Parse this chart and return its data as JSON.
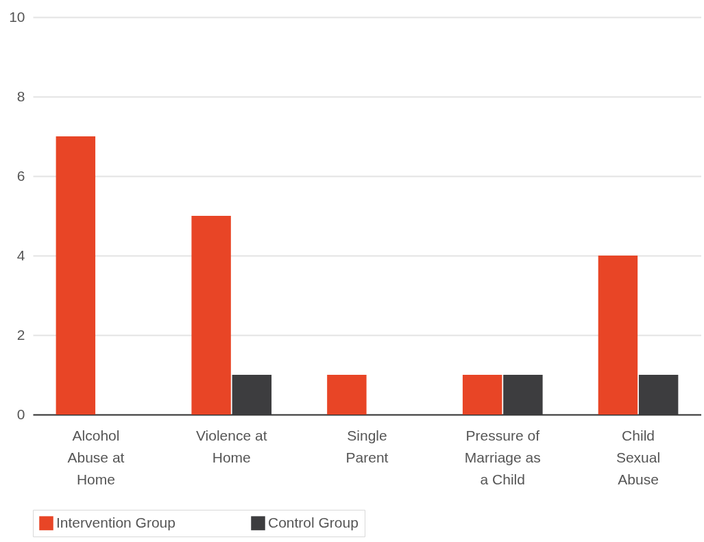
{
  "chart_data": {
    "type": "bar",
    "categories": [
      "Alcohol Abuse at Home",
      "Violence at Home",
      "Single Parent",
      "Pressure of Marriage as a Child",
      "Child Sexual Abuse"
    ],
    "series": [
      {
        "name": "Intervention Group",
        "color": "#e84526",
        "values": [
          7,
          5,
          1,
          1,
          4
        ]
      },
      {
        "name": "Control Group",
        "color": "#3d3d3f",
        "values": [
          0,
          1,
          0,
          1,
          1
        ]
      }
    ],
    "ylim": [
      0,
      10
    ],
    "yticks": [
      0,
      2,
      4,
      6,
      8,
      10
    ],
    "grid": "y",
    "legend": "bottom"
  }
}
